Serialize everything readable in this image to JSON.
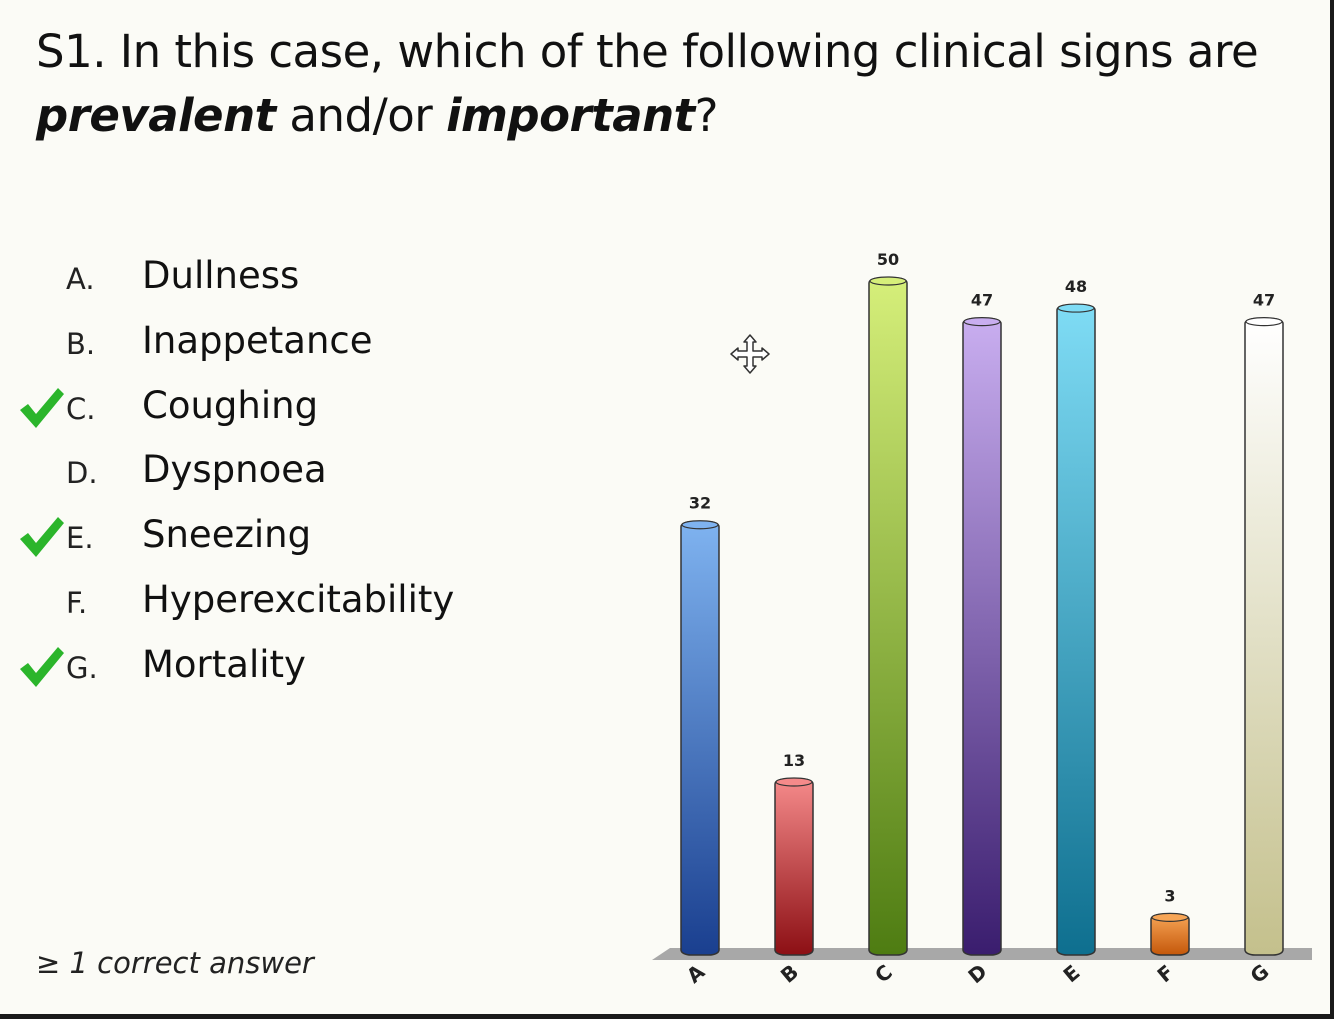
{
  "question": {
    "prefix": "S1. In this case, which of the following clinical signs are",
    "emph1": "prevalent",
    "middle": " and/or ",
    "emph2": "important",
    "suffix": "?"
  },
  "options": [
    {
      "letter": "A.",
      "text": "Dullness",
      "correct": false
    },
    {
      "letter": "B.",
      "text": "Inappetance",
      "correct": false
    },
    {
      "letter": "C.",
      "text": "Coughing",
      "correct": true
    },
    {
      "letter": "D.",
      "text": "Dyspnoea",
      "correct": false
    },
    {
      "letter": "E.",
      "text": "Sneezing",
      "correct": true
    },
    {
      "letter": "F.",
      "text": "Hyperexcitability",
      "correct": false
    },
    {
      "letter": "G.",
      "text": "Mortality",
      "correct": true
    }
  ],
  "footnote": "≥ 1 correct answer",
  "icons": {
    "check": "checkmark-icon",
    "cursor": "move-cursor-icon"
  },
  "colors": {
    "check": "#2bb52b"
  },
  "chart_data": {
    "type": "bar",
    "categories": [
      "A",
      "B",
      "C",
      "D",
      "E",
      "F",
      "G"
    ],
    "values": [
      32,
      13,
      50,
      47,
      48,
      3,
      47
    ],
    "colors": [
      [
        "#7fb3f0",
        "#1a3f8f"
      ],
      [
        "#f58a8a",
        "#8c0f14"
      ],
      [
        "#d6ef7a",
        "#4e7c12"
      ],
      [
        "#c9aef0",
        "#3a1d6e"
      ],
      [
        "#7fdcf5",
        "#0e6f8f"
      ],
      [
        "#f7a556",
        "#c4570a"
      ],
      [
        "#ffffff",
        "#c4c08c"
      ]
    ],
    "ylim": [
      0,
      50
    ],
    "grid": false,
    "legend": "none"
  }
}
